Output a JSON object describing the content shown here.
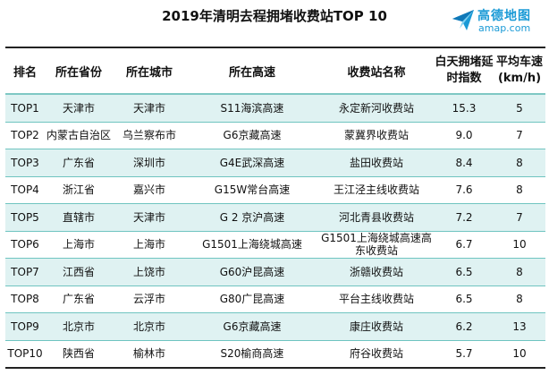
{
  "title": "2019年清明去程拥堵收费站TOP 10",
  "logo": {
    "cn": "高德地图",
    "en": "amap.com",
    "accent": "#1a9ad6"
  },
  "table": {
    "headers": [
      "排名",
      "所在省份",
      "所在城市",
      "所在高速",
      "收费站名称",
      "白天拥堵延时指数",
      "平均车速(km/h)"
    ],
    "rows": [
      [
        "TOP1",
        "天津市",
        "天津市",
        "S11海滨高速",
        "永定新河收费站",
        "15.3",
        "5"
      ],
      [
        "TOP2",
        "内蒙古自治区",
        "乌兰察布市",
        "G6京藏高速",
        "蒙冀界收费站",
        "9.0",
        "7"
      ],
      [
        "TOP3",
        "广东省",
        "深圳市",
        "G4E武深高速",
        "盐田收费站",
        "8.4",
        "8"
      ],
      [
        "TOP4",
        "浙江省",
        "嘉兴市",
        "G15W常台高速",
        "王江泾主线收费站",
        "7.6",
        "8"
      ],
      [
        "TOP5",
        "直辖市",
        "天津市",
        "G 2 京沪高速",
        "河北青县收费站",
        "7.2",
        "7"
      ],
      [
        "TOP6",
        "上海市",
        "上海市",
        "G1501上海绕城高速",
        "G1501上海绕城高速高东收费站",
        "6.7",
        "10"
      ],
      [
        "TOP7",
        "江西省",
        "上饶市",
        "G60沪昆高速",
        "浙赣收费站",
        "6.5",
        "8"
      ],
      [
        "TOP8",
        "广东省",
        "云浮市",
        "G80广昆高速",
        "平台主线收费站",
        "6.5",
        "8"
      ],
      [
        "TOP9",
        "北京市",
        "北京市",
        "G6京藏高速",
        "康庄收费站",
        "6.2",
        "13"
      ],
      [
        "TOP10",
        "陕西省",
        "榆林市",
        "S20榆商高速",
        "府谷收费站",
        "5.7",
        "10"
      ]
    ]
  }
}
